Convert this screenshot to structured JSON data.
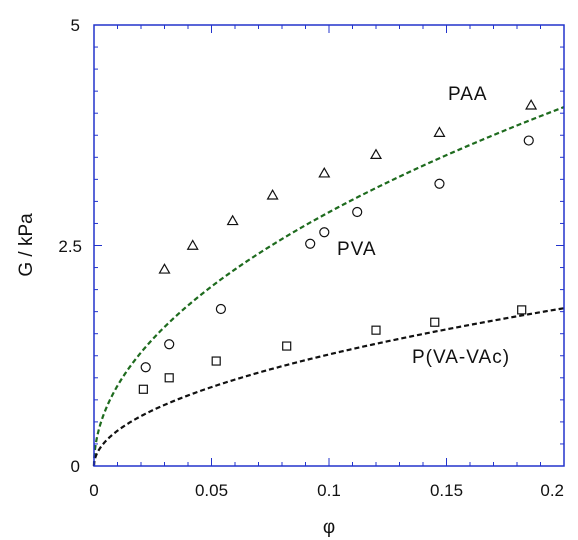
{
  "chart_data": {
    "type": "scatter",
    "xlabel": "φ",
    "ylabel": "G / kPa",
    "xlim": [
      0,
      0.2
    ],
    "ylim": [
      0,
      5
    ],
    "x_ticks": [
      "0",
      "0.05",
      "0.1",
      "0.15",
      "0.2"
    ],
    "y_ticks": [
      "0",
      "2.5",
      "5"
    ],
    "grid": false,
    "axis_color": "#2233cc",
    "series": [
      {
        "name": "PAA",
        "marker": "triangle",
        "x": [
          0.03,
          0.042,
          0.059,
          0.076,
          0.098,
          0.12,
          0.147,
          0.186
        ],
        "y": [
          2.23,
          2.5,
          2.78,
          3.07,
          3.32,
          3.53,
          3.78,
          4.09
        ],
        "fit_color": "#1e6b1e"
      },
      {
        "name": "PVA",
        "marker": "circle",
        "x": [
          0.022,
          0.032,
          0.054,
          0.092,
          0.098,
          0.112,
          0.147,
          0.185
        ],
        "y": [
          1.12,
          1.38,
          1.78,
          2.52,
          2.65,
          2.88,
          3.2,
          3.69
        ]
      },
      {
        "name": "P(VA-VAc)",
        "marker": "square",
        "x": [
          0.021,
          0.032,
          0.052,
          0.082,
          0.12,
          0.145,
          0.182
        ],
        "y": [
          0.87,
          1.0,
          1.19,
          1.36,
          1.54,
          1.63,
          1.77
        ],
        "fit_color": "#111111"
      }
    ],
    "fits": [
      {
        "series": "PAA",
        "a": 9.1,
        "b": 0.5
      },
      {
        "series": "P(VA-VAc)",
        "a": 4.0,
        "b": 0.5
      }
    ]
  }
}
